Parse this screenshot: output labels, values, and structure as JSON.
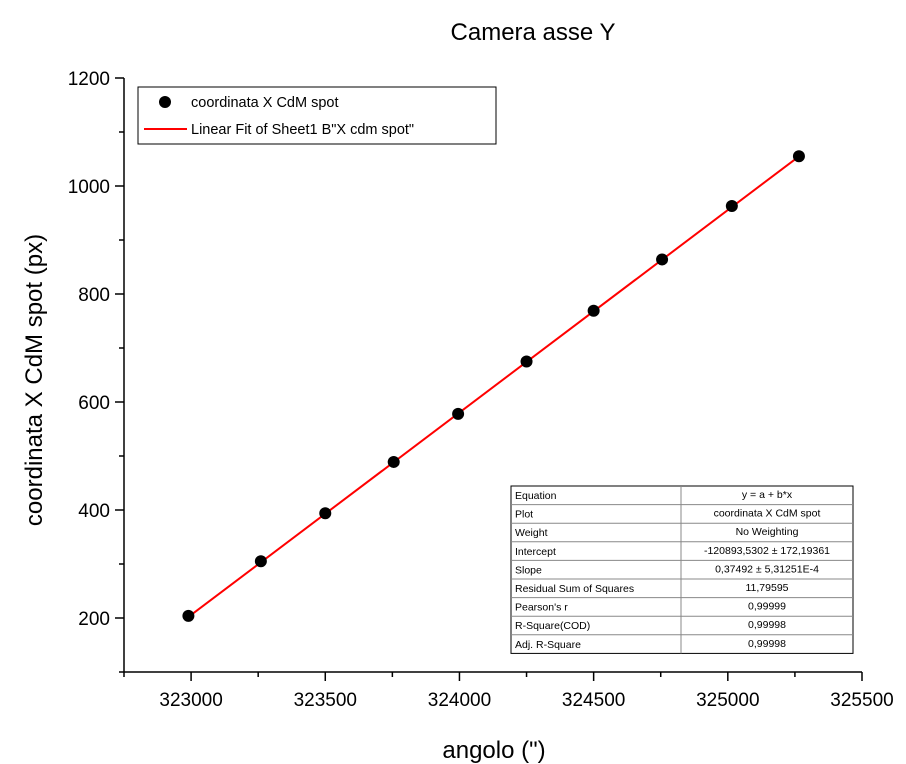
{
  "chart_data": {
    "type": "scatter",
    "title": "Camera asse Y",
    "xlabel": "angolo (\")",
    "ylabel": "coordinata X CdM spot (px)",
    "xlim": [
      322750,
      325500
    ],
    "ylim": [
      100,
      1200
    ],
    "x_ticks": [
      323000,
      323500,
      324000,
      324500,
      325000,
      325500
    ],
    "y_ticks": [
      200,
      400,
      600,
      800,
      1000,
      1200
    ],
    "series": [
      {
        "name": "coordinata X CdM spot",
        "kind": "points",
        "color": "#000000",
        "x": [
          322990,
          323260,
          323500,
          323755,
          323995,
          324250,
          324500,
          324755,
          325015,
          325265
        ],
        "y": [
          204,
          305,
          394,
          489,
          578,
          675,
          769,
          864,
          963,
          1055
        ]
      },
      {
        "name": "Linear Fit of Sheet1 B\"X cdm spot\"",
        "kind": "line",
        "color": "#ff0000",
        "intercept": -120893.5302,
        "slope": 0.37492,
        "x_range": [
          322990,
          325265
        ]
      }
    ],
    "legend_position": "top-left",
    "stats_table": {
      "position": "bottom-right",
      "rows": [
        [
          "Equation",
          "y = a + b*x"
        ],
        [
          "Plot",
          "coordinata X CdM spot"
        ],
        [
          "Weight",
          "No Weighting"
        ],
        [
          "Intercept",
          "-120893,5302 ± 172,19361"
        ],
        [
          "Slope",
          "0,37492 ± 5,31251E-4"
        ],
        [
          "Residual Sum of Squares",
          "11,79595"
        ],
        [
          "Pearson's r",
          "0,99999"
        ],
        [
          "R-Square(COD)",
          "0,99998"
        ],
        [
          "Adj. R-Square",
          "0,99998"
        ]
      ]
    }
  }
}
